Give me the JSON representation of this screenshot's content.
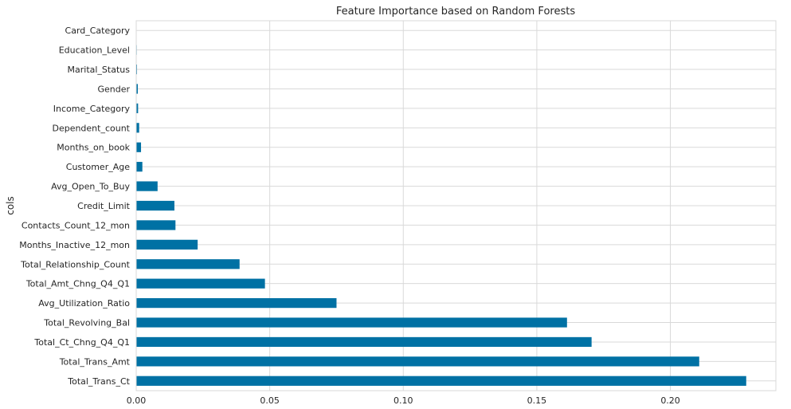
{
  "chart_data": {
    "type": "bar",
    "orientation": "horizontal",
    "title": "Feature Importance based on Random Forests",
    "xlabel": "",
    "ylabel": "cols",
    "xlim": [
      0,
      0.2395
    ],
    "xticks": [
      0.0,
      0.05,
      0.1,
      0.15,
      0.2
    ],
    "xtick_labels": [
      "0.00",
      "0.05",
      "0.10",
      "0.15",
      "0.20"
    ],
    "grid": true,
    "bar_color": "#0071a4",
    "grid_color": "#d9d9d9",
    "categories": [
      "Card_Category",
      "Education_Level",
      "Marital_Status",
      "Gender",
      "Income_Category",
      "Dependent_count",
      "Months_on_book",
      "Customer_Age",
      "Avg_Open_To_Buy",
      "Credit_Limit",
      "Contacts_Count_12_mon",
      "Months_Inactive_12_mon",
      "Total_Relationship_Count",
      "Total_Amt_Chng_Q4_Q1",
      "Avg_Utilization_Ratio",
      "Total_Revolving_Bal",
      "Total_Ct_Chng_Q4_Q1",
      "Total_Trans_Amt",
      "Total_Trans_Ct"
    ],
    "values": [
      0.0001,
      0.0002,
      0.0003,
      0.0006,
      0.0007,
      0.0011,
      0.0018,
      0.0023,
      0.008,
      0.0143,
      0.0147,
      0.023,
      0.0387,
      0.0482,
      0.075,
      0.1613,
      0.1705,
      0.2108,
      0.2284
    ]
  }
}
